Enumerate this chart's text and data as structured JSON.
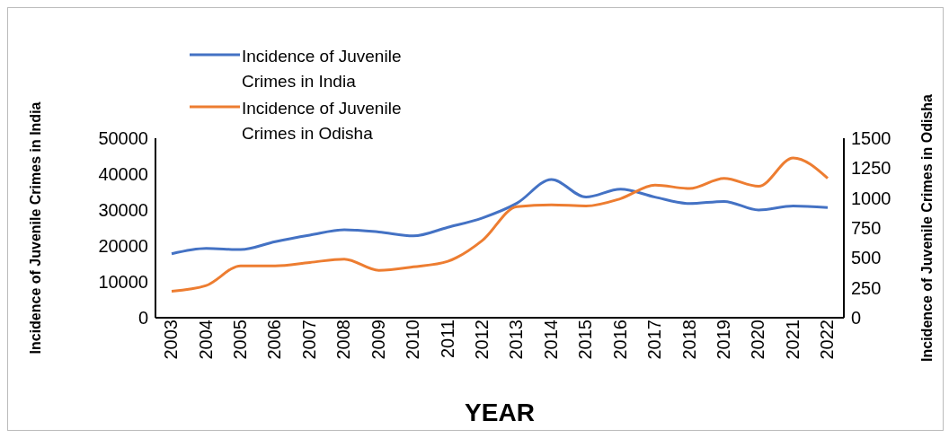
{
  "chart_data": {
    "type": "line",
    "xlabel": "YEAR",
    "ylabel": "Incidence of Juvenile Crimes in India",
    "y2label": "Incidence of Juvenile Crimes in Odisha",
    "categories": [
      "2003",
      "2004",
      "2005",
      "2006",
      "2007",
      "2008",
      "2009",
      "2010",
      "2011",
      "2012",
      "2013",
      "2014",
      "2015",
      "2016",
      "2017",
      "2018",
      "2019",
      "2020",
      "2021",
      "2022"
    ],
    "series": [
      {
        "name": "Incidence of Juvenile Crimes in India",
        "color": "#4472c4",
        "values": [
          17800,
          19300,
          19000,
          21200,
          23000,
          24500,
          23900,
          22800,
          25200,
          27800,
          31900,
          38500,
          33600,
          35800,
          33600,
          31800,
          32400,
          30000,
          31100,
          30700
        ]
      },
      {
        "name": "Incidence of Juvenile Crimes in Odisha",
        "color": "#ed7d31",
        "axis": "y2",
        "values": [
          222,
          269,
          434,
          434,
          462,
          490,
          396,
          425,
          472,
          646,
          929,
          943,
          934,
          995,
          1108,
          1080,
          1165,
          1099,
          1335,
          1165
        ]
      }
    ],
    "ylim": [
      0,
      50000
    ],
    "yticks": [
      0,
      10000,
      20000,
      30000,
      40000,
      50000
    ],
    "y2lim": [
      0,
      1500
    ],
    "y2ticks": [
      0,
      250,
      500,
      750,
      1000,
      1250,
      1500
    ],
    "grid": false,
    "legend": "top left",
    "marker": "none",
    "line_style": "solid"
  }
}
